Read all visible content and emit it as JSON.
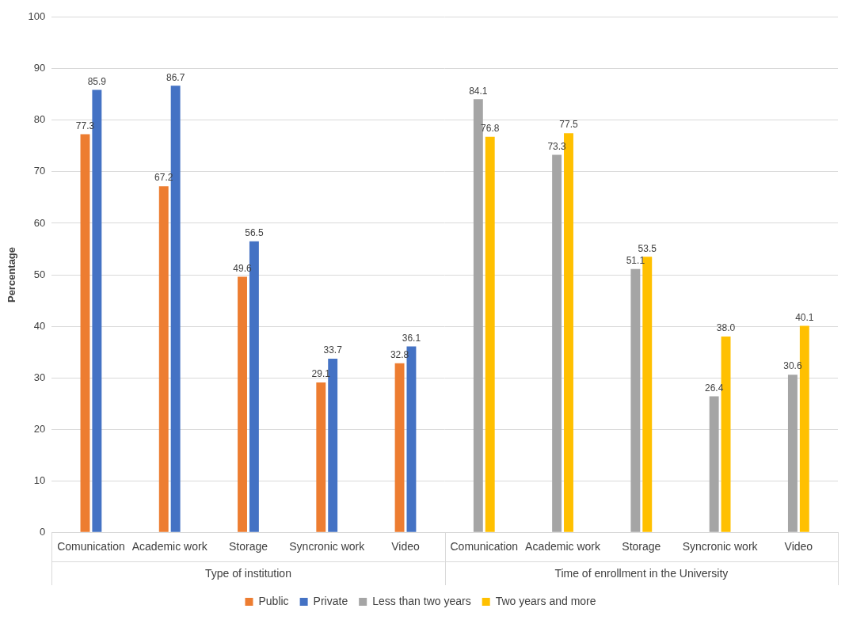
{
  "chart_data": {
    "type": "bar",
    "y_label": "Percentage",
    "ylim": [
      0,
      100
    ],
    "yticks": [
      0,
      10,
      20,
      30,
      40,
      50,
      60,
      70,
      80,
      90,
      100
    ],
    "grid": true,
    "legend": "bottom",
    "data_labels": true,
    "groups": [
      {
        "name": "Type of institution",
        "categories": [
          "Comunication",
          "Academic work",
          "Storage",
          "Syncronic work",
          "Video"
        ]
      },
      {
        "name": "Time of enrollment in the University",
        "categories": [
          "Comunication",
          "Academic work",
          "Storage",
          "Syncronic work",
          "Video"
        ]
      }
    ],
    "series": [
      {
        "name": "Public",
        "color": "#ED7D31",
        "values": [
          77.3,
          67.2,
          49.6,
          29.1,
          32.8,
          null,
          null,
          null,
          null,
          null
        ]
      },
      {
        "name": "Private",
        "color": "#4472C4",
        "values": [
          85.9,
          86.7,
          56.5,
          33.7,
          36.1,
          null,
          null,
          null,
          null,
          null
        ]
      },
      {
        "name": "Less than two years",
        "color": "#A5A5A5",
        "values": [
          null,
          null,
          null,
          null,
          null,
          84.1,
          73.3,
          51.1,
          26.4,
          30.6
        ]
      },
      {
        "name": "Two years and more",
        "color": "#FFC000",
        "values": [
          null,
          null,
          null,
          null,
          null,
          76.8,
          77.5,
          53.5,
          38.0,
          40.1
        ],
        "value_labels": [
          null,
          null,
          null,
          null,
          null,
          "76.8",
          "77.5",
          "53.5",
          "38.0",
          "40.1"
        ]
      }
    ]
  }
}
